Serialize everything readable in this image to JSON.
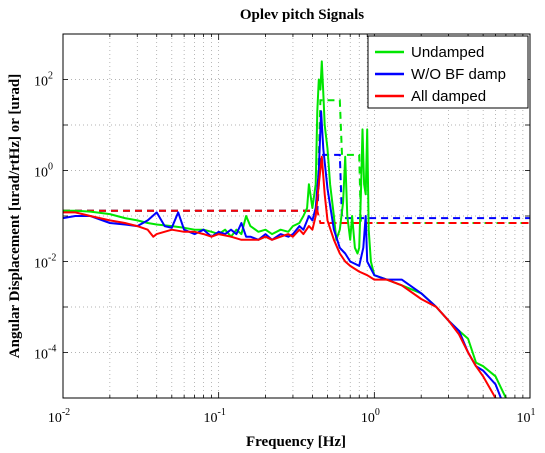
{
  "chart_data": {
    "type": "line",
    "title": "Oplev pitch Signals",
    "xlabel": "Frequency [Hz]",
    "ylabel": "Angular Displacement [urad/rtHz] or [urad]",
    "x_scale": "log",
    "y_scale": "log",
    "xlim": [
      0.01,
      10
    ],
    "ylim": [
      1e-05,
      1000
    ],
    "grid": true,
    "legend_position": "top-right",
    "x_ticks": [
      {
        "base": "10",
        "exp": "-2"
      },
      {
        "base": "10",
        "exp": "-1"
      },
      {
        "base": "10",
        "exp": "0"
      },
      {
        "base": "10",
        "exp": "1"
      }
    ],
    "y_ticks": [
      {
        "base": "10",
        "exp": "-4",
        "value": 0.0001
      },
      {
        "base": "10",
        "exp": "-2",
        "value": 0.01
      },
      {
        "base": "10",
        "exp": "0",
        "value": 1
      },
      {
        "base": "10",
        "exp": "2",
        "value": 100
      }
    ],
    "series": [
      {
        "name": "Undamped",
        "color": "#00e600",
        "asd": [
          [
            0.01,
            0.13
          ],
          [
            0.012,
            0.13
          ],
          [
            0.015,
            0.125
          ],
          [
            0.02,
            0.11
          ],
          [
            0.025,
            0.09
          ],
          [
            0.03,
            0.08
          ],
          [
            0.035,
            0.07
          ],
          [
            0.04,
            0.065
          ],
          [
            0.05,
            0.06
          ],
          [
            0.06,
            0.055
          ],
          [
            0.07,
            0.05
          ],
          [
            0.08,
            0.05
          ],
          [
            0.09,
            0.045
          ],
          [
            0.1,
            0.04
          ],
          [
            0.11,
            0.05
          ],
          [
            0.12,
            0.035
          ],
          [
            0.13,
            0.05
          ],
          [
            0.14,
            0.04
          ],
          [
            0.15,
            0.1
          ],
          [
            0.16,
            0.06
          ],
          [
            0.18,
            0.045
          ],
          [
            0.2,
            0.05
          ],
          [
            0.22,
            0.04
          ],
          [
            0.25,
            0.05
          ],
          [
            0.28,
            0.045
          ],
          [
            0.3,
            0.06
          ],
          [
            0.33,
            0.07
          ],
          [
            0.35,
            0.1
          ],
          [
            0.37,
            0.15
          ],
          [
            0.38,
            0.5
          ],
          [
            0.4,
            0.15
          ],
          [
            0.42,
            0.5
          ],
          [
            0.43,
            20
          ],
          [
            0.44,
            100
          ],
          [
            0.45,
            60
          ],
          [
            0.46,
            250
          ],
          [
            0.47,
            50
          ],
          [
            0.48,
            10
          ],
          [
            0.5,
            3
          ],
          [
            0.52,
            0.5
          ],
          [
            0.55,
            0.1
          ],
          [
            0.57,
            0.03
          ],
          [
            0.6,
            0.05
          ],
          [
            0.63,
            0.2
          ],
          [
            0.65,
            2
          ],
          [
            0.67,
            0.1
          ],
          [
            0.7,
            0.03
          ],
          [
            0.72,
            0.1
          ],
          [
            0.75,
            0.02
          ],
          [
            0.78,
            0.015
          ],
          [
            0.8,
            0.02
          ],
          [
            0.82,
            0.3
          ],
          [
            0.84,
            8
          ],
          [
            0.86,
            0.5
          ],
          [
            0.88,
            0.3
          ],
          [
            0.9,
            8
          ],
          [
            0.92,
            0.05
          ],
          [
            0.95,
            0.01
          ],
          [
            1,
            0.005
          ],
          [
            1.2,
            0.004
          ],
          [
            1.5,
            0.003
          ],
          [
            2,
            0.002
          ],
          [
            2.5,
            0.001
          ],
          [
            3,
            0.0005
          ],
          [
            3.5,
            0.0003
          ],
          [
            4,
            0.0002
          ],
          [
            4.5,
            6e-05
          ],
          [
            5,
            5e-05
          ],
          [
            6,
            3e-05
          ],
          [
            7,
            1e-05
          ]
        ],
        "rms": [
          [
            0.01,
            0.13
          ],
          [
            0.43,
            0.13
          ],
          [
            0.45,
            35
          ],
          [
            0.6,
            35
          ],
          [
            0.62,
            2.2
          ],
          [
            0.8,
            2.2
          ],
          [
            0.82,
            0.07
          ],
          [
            10,
            0.07
          ]
        ]
      },
      {
        "name": "W/O BF damp",
        "color": "#0000ff",
        "asd": [
          [
            0.01,
            0.09
          ],
          [
            0.012,
            0.1
          ],
          [
            0.015,
            0.1
          ],
          [
            0.02,
            0.07
          ],
          [
            0.025,
            0.065
          ],
          [
            0.03,
            0.06
          ],
          [
            0.035,
            0.08
          ],
          [
            0.04,
            0.12
          ],
          [
            0.045,
            0.06
          ],
          [
            0.05,
            0.055
          ],
          [
            0.055,
            0.12
          ],
          [
            0.06,
            0.05
          ],
          [
            0.07,
            0.04
          ],
          [
            0.08,
            0.05
          ],
          [
            0.09,
            0.035
          ],
          [
            0.1,
            0.045
          ],
          [
            0.11,
            0.04
          ],
          [
            0.12,
            0.05
          ],
          [
            0.13,
            0.04
          ],
          [
            0.14,
            0.07
          ],
          [
            0.15,
            0.035
          ],
          [
            0.16,
            0.035
          ],
          [
            0.18,
            0.03
          ],
          [
            0.2,
            0.04
          ],
          [
            0.22,
            0.03
          ],
          [
            0.25,
            0.04
          ],
          [
            0.28,
            0.035
          ],
          [
            0.3,
            0.04
          ],
          [
            0.33,
            0.06
          ],
          [
            0.35,
            0.05
          ],
          [
            0.38,
            0.1
          ],
          [
            0.4,
            0.08
          ],
          [
            0.42,
            0.15
          ],
          [
            0.44,
            1
          ],
          [
            0.455,
            20
          ],
          [
            0.47,
            3
          ],
          [
            0.5,
            0.4
          ],
          [
            0.55,
            0.05
          ],
          [
            0.6,
            0.02
          ],
          [
            0.65,
            0.015
          ],
          [
            0.7,
            0.01
          ],
          [
            0.8,
            0.008
          ],
          [
            0.85,
            0.02
          ],
          [
            0.88,
            0.1
          ],
          [
            0.9,
            0.01
          ],
          [
            1,
            0.005
          ],
          [
            1.2,
            0.004
          ],
          [
            1.5,
            0.004
          ],
          [
            2,
            0.002
          ],
          [
            2.5,
            0.001
          ],
          [
            3,
            0.0005
          ],
          [
            3.5,
            0.0003
          ],
          [
            4,
            0.0001
          ],
          [
            4.5,
            5e-05
          ],
          [
            5,
            4e-05
          ],
          [
            6,
            2e-05
          ],
          [
            6.5,
            1e-05
          ]
        ],
        "rms": [
          [
            0.01,
            0.13
          ],
          [
            0.43,
            0.13
          ],
          [
            0.45,
            2.2
          ],
          [
            0.6,
            2.2
          ],
          [
            0.62,
            0.09
          ],
          [
            10,
            0.09
          ]
        ]
      },
      {
        "name": "All damped",
        "color": "#ff0000",
        "asd": [
          [
            0.01,
            0.12
          ],
          [
            0.012,
            0.12
          ],
          [
            0.015,
            0.1
          ],
          [
            0.02,
            0.08
          ],
          [
            0.025,
            0.07
          ],
          [
            0.03,
            0.06
          ],
          [
            0.035,
            0.05
          ],
          [
            0.038,
            0.035
          ],
          [
            0.04,
            0.04
          ],
          [
            0.05,
            0.05
          ],
          [
            0.06,
            0.045
          ],
          [
            0.07,
            0.045
          ],
          [
            0.08,
            0.04
          ],
          [
            0.09,
            0.035
          ],
          [
            0.1,
            0.04
          ],
          [
            0.12,
            0.035
          ],
          [
            0.14,
            0.03
          ],
          [
            0.16,
            0.03
          ],
          [
            0.18,
            0.03
          ],
          [
            0.2,
            0.035
          ],
          [
            0.22,
            0.03
          ],
          [
            0.25,
            0.035
          ],
          [
            0.28,
            0.04
          ],
          [
            0.3,
            0.035
          ],
          [
            0.33,
            0.05
          ],
          [
            0.35,
            0.04
          ],
          [
            0.38,
            0.06
          ],
          [
            0.4,
            0.05
          ],
          [
            0.42,
            0.1
          ],
          [
            0.44,
            0.5
          ],
          [
            0.46,
            2
          ],
          [
            0.48,
            0.3
          ],
          [
            0.5,
            0.08
          ],
          [
            0.55,
            0.03
          ],
          [
            0.6,
            0.015
          ],
          [
            0.65,
            0.01
          ],
          [
            0.7,
            0.008
          ],
          [
            0.8,
            0.006
          ],
          [
            0.9,
            0.005
          ],
          [
            1,
            0.004
          ],
          [
            1.2,
            0.004
          ],
          [
            1.5,
            0.003
          ],
          [
            2,
            0.0015
          ],
          [
            2.5,
            0.001
          ],
          [
            3,
            0.0005
          ],
          [
            3.5,
            0.00025
          ],
          [
            4,
            0.0001
          ],
          [
            4.5,
            5e-05
          ],
          [
            5,
            3e-05
          ],
          [
            6,
            1e-05
          ]
        ],
        "rms": [
          [
            0.01,
            0.13
          ],
          [
            0.43,
            0.13
          ],
          [
            0.45,
            0.07
          ],
          [
            10,
            0.07
          ]
        ]
      }
    ]
  }
}
